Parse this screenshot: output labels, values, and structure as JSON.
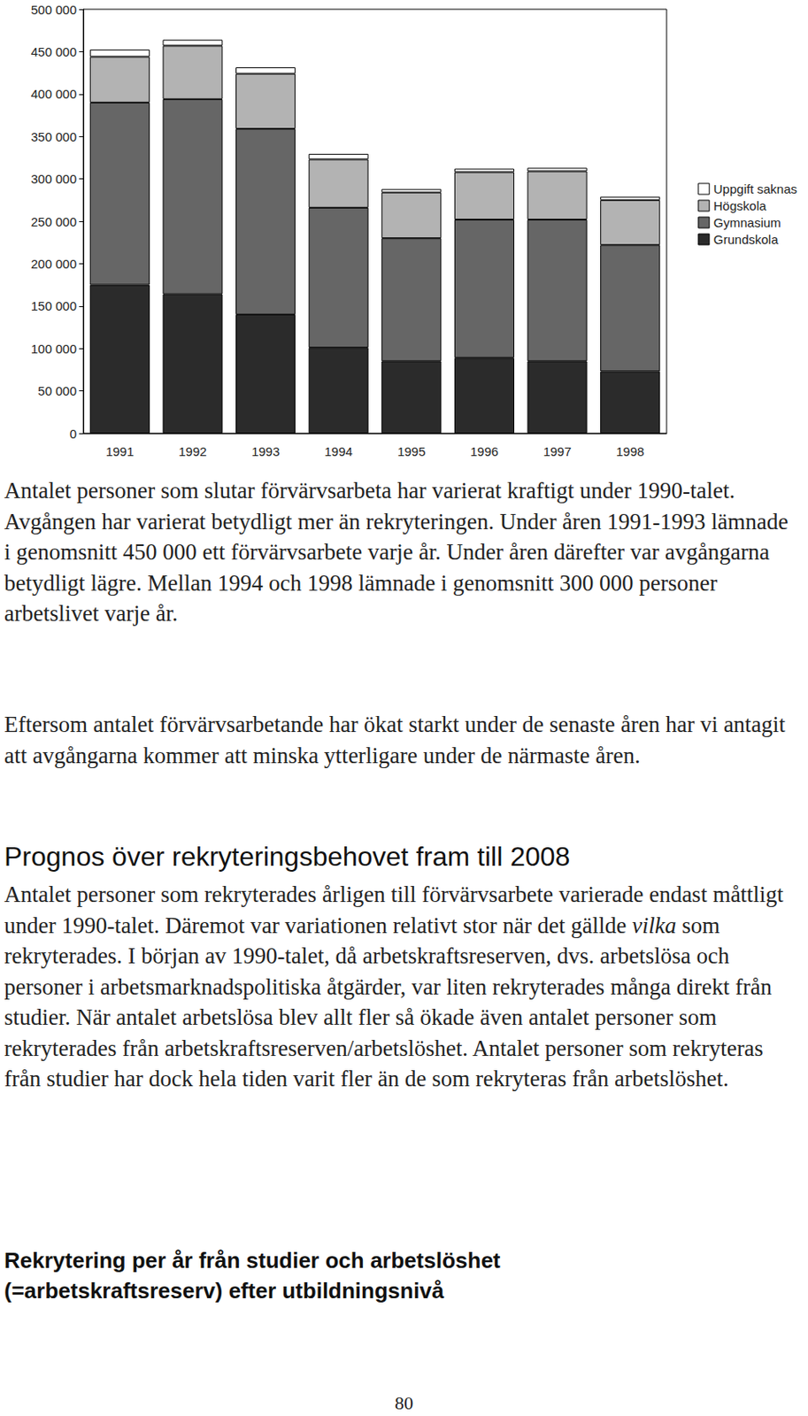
{
  "chart_data": {
    "type": "bar",
    "stacked": true,
    "categories": [
      "1991",
      "1992",
      "1993",
      "1994",
      "1995",
      "1996",
      "1997",
      "1998"
    ],
    "series": [
      {
        "name": "Grundskola",
        "color": "#2b2b2b",
        "values": [
          175000,
          164000,
          140000,
          101000,
          85000,
          89000,
          85000,
          73000
        ]
      },
      {
        "name": "Gymnasium",
        "color": "#666666",
        "values": [
          215000,
          230000,
          219000,
          165000,
          145000,
          163000,
          167000,
          149000
        ]
      },
      {
        "name": "Högskola",
        "color": "#b3b3b3",
        "values": [
          54000,
          63000,
          65000,
          57000,
          54000,
          56000,
          57000,
          53000
        ]
      },
      {
        "name": "Uppgift saknas",
        "color": "#ffffff",
        "values": [
          8500,
          7000,
          7500,
          6500,
          4000,
          4000,
          4000,
          4000
        ]
      }
    ],
    "ylim": [
      0,
      500000
    ],
    "yticks": [
      0,
      {
        "value": 50000,
        "label": "50 000"
      },
      {
        "value": 100000,
        "label": "100 000"
      },
      {
        "value": 150000,
        "label": "150 000"
      },
      {
        "value": 200000,
        "label": "200 000"
      },
      {
        "value": 250000,
        "label": "250 000"
      },
      {
        "value": 300000,
        "label": "300 000"
      },
      {
        "value": 350000,
        "label": "350 000"
      },
      {
        "value": 400000,
        "label": "400 000"
      },
      {
        "value": 450000,
        "label": "450 000"
      },
      {
        "value": 500000,
        "label": "500 000"
      }
    ],
    "grid": false,
    "legend": "right"
  },
  "page": {
    "paragraphs": [
      [
        {
          "text": "Antalet personer som slutar förvärvsarbeta har varierat kraftigt under 1990-talet. Avgången har varierat betydligt mer än rekryteringen. Under åren 1991-1993 lämnade i genomsnitt 450 000 ett förvärvsarbete varje år. Under åren därefter var avgångarna betydligt lägre. Mellan 1994 och 1998 lämnade i genomsnitt 300 000 personer arbetslivet varje år."
        }
      ],
      [
        {
          "text": "Eftersom antalet förvärvsarbetande har ökat starkt under de senaste åren har vi antagit att avgångarna kommer att minska ytterligare under de närmaste åren."
        }
      ]
    ],
    "heading": "Prognos över rekryteringsbehovet fram till 2008",
    "section_paragraph": [
      {
        "text": "Antalet personer som rekryterades årligen till förvärvsarbete varierade endast måttligt under 1990-talet. Däremot var variationen relativt stor när det gällde "
      },
      {
        "text": "vilka",
        "italic": true
      },
      {
        "text": " som rekryterades. I början av 1990-talet, då arbetskraftsreserven, dvs. arbetslösa och personer i arbetsmarknadspolitiska åtgärder, var liten rekryterades många direkt från studier. När antalet arbetslösa blev allt fler så ökade även antalet personer som rekryterades från arbetskraftsreserven/arbetslöshet. Antalet personer som rekryteras från studier har dock hela tiden varit fler än de som rekryteras från arbetslöshet."
      }
    ],
    "bold_heading": [
      "Rekrytering per år från studier och arbetslöshet",
      "(=arbetskraftsreserv) efter utbildningsnivå"
    ],
    "page_number": "80"
  }
}
